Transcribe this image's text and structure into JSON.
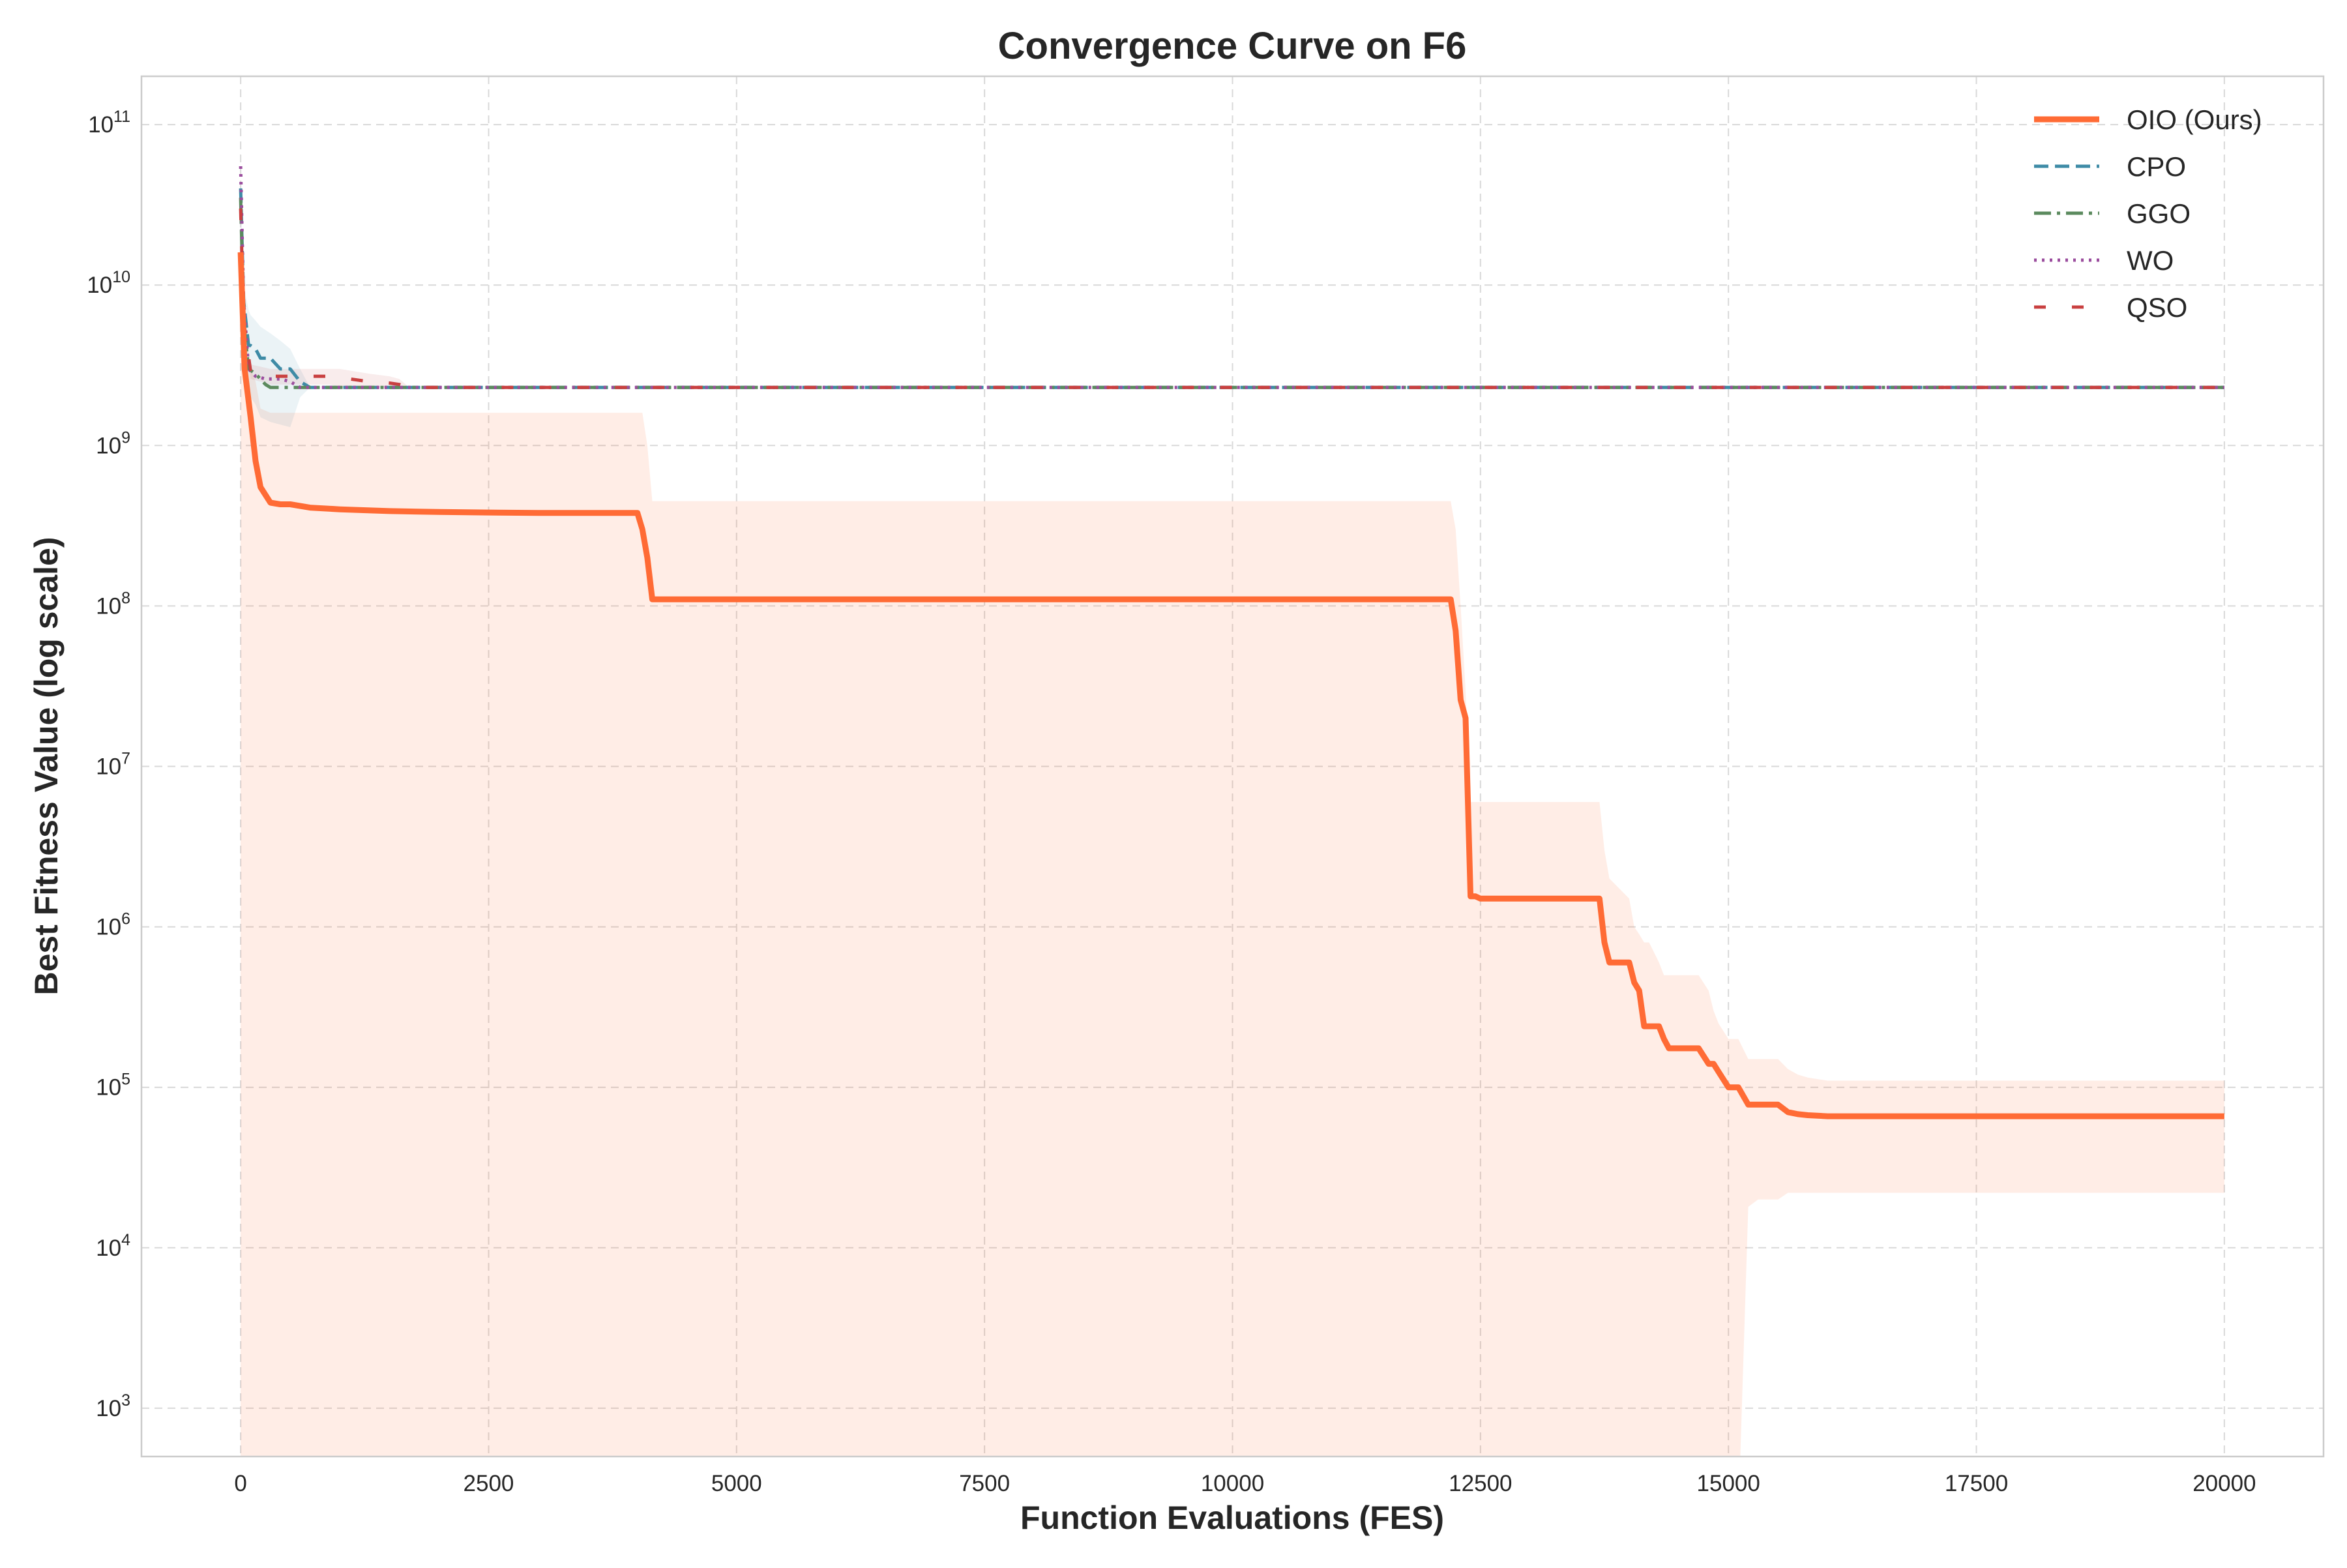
{
  "chart_data": {
    "type": "line",
    "title": "Convergence Curve on F6",
    "xlabel": "Function Evaluations (FES)",
    "ylabel": "Best Fitness Value (log scale)",
    "xlim": [
      -1000,
      21000
    ],
    "x_ticks": [
      0,
      2500,
      5000,
      7500,
      10000,
      12500,
      15000,
      17500,
      20000
    ],
    "x_tick_labels": [
      "0",
      "2500",
      "5000",
      "7500",
      "10000",
      "12500",
      "15000",
      "17500",
      "20000"
    ],
    "y_scale": "log",
    "ylim": [
      500,
      200000000000
    ],
    "y_ticks": [
      1000,
      10000,
      100000,
      1000000,
      10000000,
      100000000,
      1000000000,
      10000000000,
      100000000000
    ],
    "y_tick_labels": [
      {
        "base": "10",
        "exp": "3"
      },
      {
        "base": "10",
        "exp": "4"
      },
      {
        "base": "10",
        "exp": "5"
      },
      {
        "base": "10",
        "exp": "6"
      },
      {
        "base": "10",
        "exp": "7"
      },
      {
        "base": "10",
        "exp": "8"
      },
      {
        "base": "10",
        "exp": "9"
      },
      {
        "base": "10",
        "exp": "10"
      },
      {
        "base": "10",
        "exp": "11"
      }
    ],
    "grid": true,
    "legend_position": "top-right",
    "series": [
      {
        "name": "OIO (Ours)",
        "color": "#ff6b35",
        "style": "solid",
        "x": [
          0,
          40,
          100,
          150,
          200,
          300,
          400,
          500,
          700,
          1000,
          1500,
          2000,
          2500,
          3000,
          3500,
          4000,
          4050,
          4100,
          4150,
          4200,
          6000,
          8000,
          10000,
          12000,
          12200,
          12250,
          12300,
          12350,
          12400,
          12450,
          12500,
          12600,
          13000,
          13700,
          13750,
          13800,
          14000,
          14050,
          14100,
          14150,
          14200,
          14300,
          14350,
          14400,
          14500,
          14600,
          14700,
          14800,
          14850,
          14900,
          15000,
          15100,
          15200,
          15300,
          15500,
          15600,
          15700,
          15800,
          16000,
          17000,
          18000,
          19000,
          20000
        ],
        "y": [
          16000000000,
          3000000000,
          1500000000,
          800000000,
          550000000,
          440000000,
          430000000,
          430000000,
          410000000,
          400000000,
          390000000,
          385000000,
          382000000,
          380000000,
          380000000,
          380000000,
          300000000,
          200000000,
          110000000,
          110000000,
          110000000,
          110000000,
          110000000,
          110000000,
          110000000,
          70000000,
          26000000,
          20000000,
          1550000,
          1550000,
          1500000,
          1500000,
          1500000,
          1500000,
          800000,
          600000,
          600000,
          450000,
          400000,
          240000,
          240000,
          240000,
          200000,
          175000,
          175000,
          175000,
          175000,
          140000,
          140000,
          125000,
          100000,
          100000,
          78000,
          78000,
          78000,
          70000,
          68000,
          67000,
          66000,
          66000,
          66000,
          66000,
          66000
        ],
        "band_upper": [
          16000000000,
          5000000000,
          3000000000,
          2500000000,
          1700000000,
          1600000000,
          1600000000,
          1600000000,
          1600000000,
          1600000000,
          1600000000,
          1600000000,
          1600000000,
          1600000000,
          1600000000,
          1600000000,
          1600000000,
          1000000000,
          450000000,
          450000000,
          450000000,
          450000000,
          450000000,
          450000000,
          450000000,
          300000000,
          100000000,
          30000000,
          6000000,
          6000000,
          6000000,
          6000000,
          6000000,
          6000000,
          3000000,
          2000000,
          1500000,
          1000000,
          900000,
          800000,
          800000,
          600000,
          500000,
          500000,
          500000,
          500000,
          500000,
          400000,
          300000,
          250000,
          200000,
          200000,
          150000,
          150000,
          150000,
          130000,
          120000,
          115000,
          110000,
          110000,
          110000,
          110000,
          110000
        ],
        "band_lower_x": [
          0,
          15120,
          15200,
          15300,
          15500,
          15600,
          15800,
          16000,
          17000,
          18000,
          19000,
          20000
        ],
        "band_lower": [
          500,
          500,
          18000,
          20000,
          20000,
          22000,
          22000,
          22000,
          22000,
          22000,
          22000,
          22000
        ]
      },
      {
        "name": "CPO",
        "color": "#3e8ba6",
        "style": "dashed",
        "x": [
          0,
          30,
          80,
          100,
          150,
          200,
          300,
          400,
          500,
          600,
          700,
          1000,
          2000,
          5000,
          10000,
          15000,
          20000
        ],
        "y": [
          40000000000,
          8000000000,
          4200000000,
          4200000000,
          4000000000,
          3500000000,
          3500000000,
          3000000000,
          3000000000,
          2500000000,
          2300000000,
          2300000000,
          2300000000,
          2300000000,
          2300000000,
          2300000000,
          2300000000
        ],
        "band_upper": [
          40000000000,
          10000000000,
          7000000000,
          6500000000,
          6000000000,
          5500000000,
          5000000000,
          4500000000,
          4000000000,
          3000000000,
          2300000000,
          2300000000,
          2300000000,
          2300000000,
          2300000000,
          2300000000,
          2300000000
        ],
        "band_lower": [
          40000000000,
          5000000000,
          2500000000,
          2000000000,
          1800000000,
          1500000000,
          1400000000,
          1350000000,
          1300000000,
          2000000000,
          2300000000,
          2300000000,
          2300000000,
          2300000000,
          2300000000,
          2300000000,
          2300000000
        ]
      },
      {
        "name": "GGO",
        "color": "#5b8a5e",
        "style": "dashdot",
        "x": [
          0,
          30,
          80,
          150,
          250,
          300,
          500,
          700,
          1000,
          2000,
          5000,
          10000,
          15000,
          20000
        ],
        "y": [
          35000000000,
          6000000000,
          3000000000,
          2800000000,
          2400000000,
          2300000000,
          2300000000,
          2300000000,
          2300000000,
          2300000000,
          2300000000,
          2300000000,
          2300000000,
          2300000000
        ]
      },
      {
        "name": "WO",
        "color": "#9b4d9e",
        "style": "dotted",
        "x": [
          0,
          30,
          80,
          150,
          250,
          400,
          500,
          600,
          700,
          1000,
          2000,
          5000,
          10000,
          15000,
          20000
        ],
        "y": [
          55000000000,
          8000000000,
          3000000000,
          2700000000,
          2600000000,
          2600000000,
          2500000000,
          2300000000,
          2300000000,
          2300000000,
          2300000000,
          2300000000,
          2300000000,
          2300000000,
          2300000000
        ]
      },
      {
        "name": "QSO",
        "color": "#c94040",
        "style": "loosedash",
        "x": [
          0,
          30,
          100,
          200,
          300,
          800,
          900,
          1000,
          1300,
          1500,
          1600,
          1700,
          2000,
          5000,
          10000,
          15000,
          20000
        ],
        "y": [
          30000000000,
          6000000000,
          2900000000,
          2800000000,
          2700000000,
          2700000000,
          2700000000,
          2650000000,
          2500000000,
          2450000000,
          2400000000,
          2300000000,
          2300000000,
          2300000000,
          2300000000,
          2300000000,
          2300000000
        ],
        "band_upper": [
          30000000000,
          6000000000,
          3200000000,
          3100000000,
          3000000000,
          3000000000,
          3000000000,
          3000000000,
          2800000000,
          2700000000,
          2600000000,
          2300000000,
          2300000000,
          2300000000,
          2300000000,
          2300000000,
          2300000000
        ],
        "band_lower": [
          30000000000,
          6000000000,
          2600000000,
          2500000000,
          2400000000,
          2400000000,
          2400000000,
          2300000000,
          2300000000,
          2300000000,
          2300000000,
          2300000000,
          2300000000,
          2300000000,
          2300000000,
          2300000000,
          2300000000
        ]
      }
    ]
  }
}
